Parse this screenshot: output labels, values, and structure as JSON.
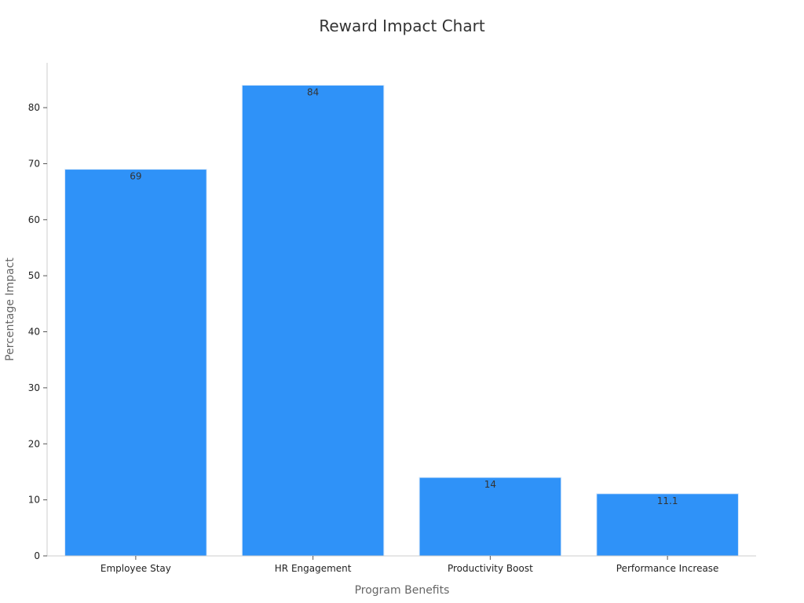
{
  "chart_data": {
    "type": "bar",
    "title": "Reward Impact Chart",
    "xlabel": "Program Benefits",
    "ylabel": "Percentage Impact",
    "categories": [
      "Employee Stay",
      "HR Engagement",
      "Productivity Boost",
      "Performance Increase"
    ],
    "values": [
      69,
      84,
      14,
      11.1
    ],
    "data_labels": [
      "69",
      "84",
      "14",
      "11.1"
    ],
    "ylim": [
      0,
      88
    ],
    "yticks": [
      0,
      10,
      20,
      30,
      40,
      50,
      60,
      70,
      80
    ],
    "grid": false,
    "legend": "none",
    "bar_color": "#2f92f8"
  }
}
